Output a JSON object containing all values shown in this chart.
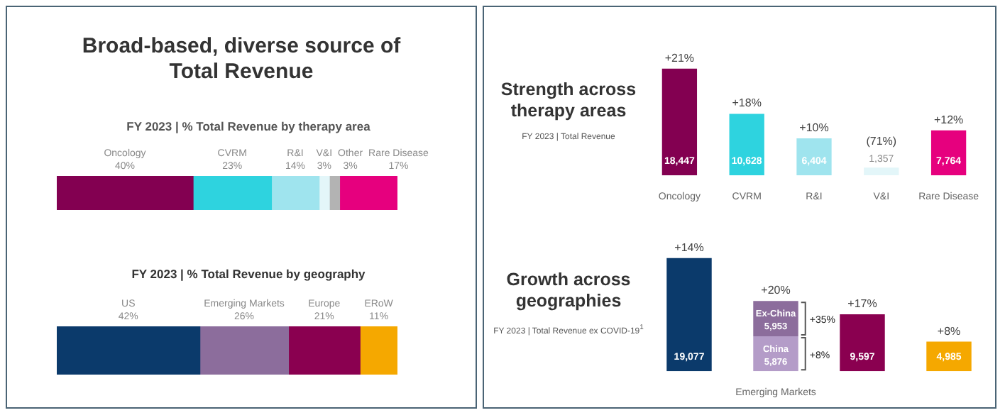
{
  "chart_data": [
    {
      "type": "bar",
      "title": "Broad-based, diverse source of Total Revenue",
      "subtitle": "FY 2023 | % Total Revenue by therapy area",
      "orientation": "horizontal",
      "stacked": true,
      "categories": [
        null
      ],
      "xlim": [
        0,
        100
      ],
      "tick_labels": false,
      "series": [
        {
          "name": "Oncology",
          "color": "#830051",
          "values": [
            40
          ],
          "value_labels": [
            "40%"
          ]
        },
        {
          "name": "CVRM",
          "color": "#2ed3df",
          "values": [
            23
          ],
          "value_labels": [
            "23%"
          ]
        },
        {
          "name": "R&I",
          "color": "#9fe4ee",
          "values": [
            14
          ],
          "value_labels": [
            "14%"
          ]
        },
        {
          "name": "V&I",
          "color": "#e3f6f9",
          "values": [
            3
          ],
          "value_labels": [
            "3%"
          ]
        },
        {
          "name": "Other",
          "color": "#b3b3b3",
          "values": [
            3
          ],
          "value_labels": [
            "3%"
          ]
        },
        {
          "name": "Rare Disease",
          "color": "#e6007e",
          "values": [
            17
          ],
          "value_labels": [
            "17%"
          ]
        }
      ]
    },
    {
      "type": "bar",
      "title": "FY 2023 | % Total Revenue by geography",
      "orientation": "horizontal",
      "stacked": true,
      "categories": [
        null
      ],
      "xlim": [
        0,
        100
      ],
      "tick_labels": false,
      "series": [
        {
          "name": "US",
          "color": "#0b3a6b",
          "values": [
            42
          ],
          "value_labels": [
            "42%"
          ]
        },
        {
          "name": "Emerging Markets",
          "color": "#8c6d9c",
          "values": [
            26
          ],
          "value_labels": [
            "26%"
          ]
        },
        {
          "name": "Europe",
          "color": "#8a0050",
          "values": [
            21
          ],
          "value_labels": [
            "21%"
          ]
        },
        {
          "name": "ERoW",
          "color": "#f5a800",
          "values": [
            11
          ],
          "value_labels": [
            "11%"
          ]
        }
      ]
    },
    {
      "type": "bar",
      "title": "Strength across therapy areas",
      "subtitle": "FY 2023 | Total Revenue",
      "categories": [
        "Oncology",
        "CVRM",
        "R&I",
        "V&I",
        "Rare Disease"
      ],
      "values": [
        18447,
        10628,
        6404,
        1357,
        7764
      ],
      "colors": [
        "#830051",
        "#2ed3df",
        "#9fe4ee",
        "#e3f6f9",
        "#e6007e"
      ],
      "value_labels": [
        "18,447",
        "10,628",
        "6,404",
        "1,357",
        "7,764"
      ],
      "tick_labels": "x",
      "annotations": [
        {
          "text": "+21%",
          "x": "Oncology",
          "y": 18447
        },
        {
          "text": "+18%",
          "x": "CVRM",
          "y": 10628
        },
        {
          "text": "+10%",
          "x": "R&I",
          "y": 6404
        },
        {
          "text": "(71%)",
          "x": "V&I",
          "y": 1357
        },
        {
          "text": "+12%",
          "x": "Rare Disease",
          "y": 7764
        }
      ]
    },
    {
      "type": "bar",
      "title": "Growth across geographies",
      "subtitle": "FY 2023 | Total Revenue ex COVID-19$^{1}$",
      "stacked": true,
      "categories": [
        null,
        "Emerging Markets",
        null,
        null
      ],
      "tick_labels": "x",
      "series": [
        {
          "colors": [
            "#0b3a6b",
            "#8c6d9c",
            "#8a0050",
            "#f5a800"
          ],
          "values": [
            19077,
            null,
            9597,
            4985
          ],
          "value_labels": [
            "19,077",
            null,
            "9,597",
            "4,985"
          ]
        },
        {
          "name": "China",
          "color": "#b49cc8",
          "values": [
            null,
            5876,
            null,
            null
          ],
          "value_labels": [
            null,
            "5,876",
            null,
            null
          ]
        },
        {
          "name": "Ex-China",
          "color": "#8c6d9c",
          "values": [
            null,
            5953,
            null,
            null
          ],
          "value_labels": [
            null,
            "5,953",
            null,
            null
          ]
        }
      ],
      "annotations": [
        {
          "text": "+14%",
          "y": 19077
        },
        {
          "text": "+20%",
          "x": "Emerging Markets",
          "y": 11829
        },
        "+35%",
        "+8%",
        {
          "text": "+17%",
          "y": 9597
        },
        {
          "text": "+8%",
          "y": 4985
        }
      ]
    }
  ]
}
